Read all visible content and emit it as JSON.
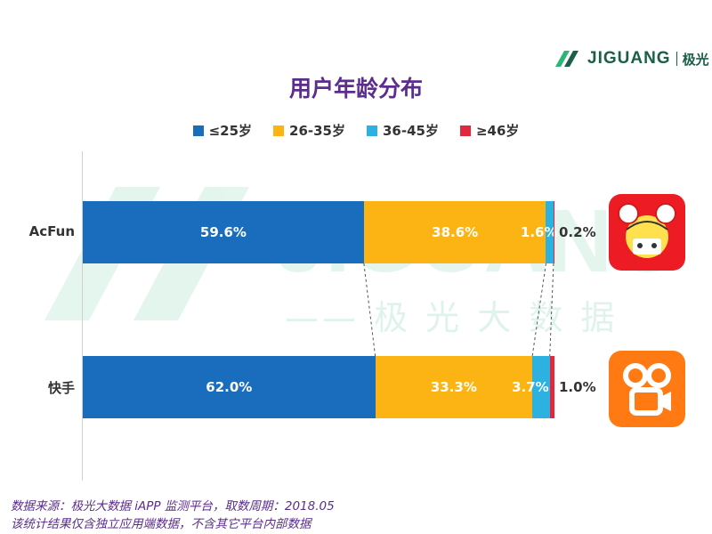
{
  "brand": {
    "name": "JIGUANG",
    "name_cn": "极光"
  },
  "watermark": {
    "text": "JIGUANG",
    "subtext": "—— 极 光 大 数 据"
  },
  "footnotes": [
    "数据来源：极光大数据 iAPP 监测平台，取数周期：2018.05",
    "该统计结果仅含独立应用端数据，不含其它平台内部数据"
  ],
  "chart_data": {
    "type": "bar",
    "orientation": "horizontal-stacked-100",
    "title": "用户年龄分布",
    "legend_position": "top",
    "grid": false,
    "categories": [
      "AcFun",
      "快手"
    ],
    "series": [
      {
        "name": "≤25岁",
        "color": "#1a6dbc",
        "values": [
          59.6,
          62.0
        ],
        "labels": [
          "59.6%",
          "62.0%"
        ]
      },
      {
        "name": "26-35岁",
        "color": "#fbb414",
        "values": [
          38.6,
          33.3
        ],
        "labels": [
          "38.6%",
          "33.3%"
        ]
      },
      {
        "name": "36-45岁",
        "color": "#2cb1e1",
        "values": [
          1.6,
          3.7
        ],
        "labels": [
          "1.6%",
          "3.7%"
        ]
      },
      {
        "name": "≥46岁",
        "color": "#e2283c",
        "values": [
          0.2,
          1.0
        ],
        "labels": [
          "0.2%",
          "1.0%"
        ]
      }
    ],
    "xlim": [
      0,
      100
    ]
  }
}
